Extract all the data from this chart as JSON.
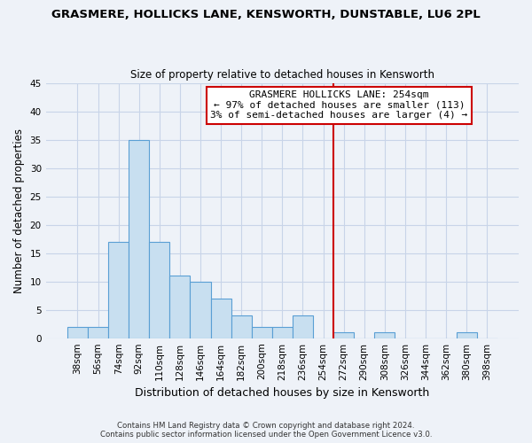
{
  "title": "GRASMERE, HOLLICKS LANE, KENSWORTH, DUNSTABLE, LU6 2PL",
  "subtitle": "Size of property relative to detached houses in Kensworth",
  "xlabel": "Distribution of detached houses by size in Kensworth",
  "ylabel": "Number of detached properties",
  "bar_labels": [
    "38sqm",
    "56sqm",
    "74sqm",
    "92sqm",
    "110sqm",
    "128sqm",
    "146sqm",
    "164sqm",
    "182sqm",
    "200sqm",
    "218sqm",
    "236sqm",
    "254sqm",
    "272sqm",
    "290sqm",
    "308sqm",
    "326sqm",
    "344sqm",
    "362sqm",
    "380sqm",
    "398sqm"
  ],
  "bar_heights": [
    2,
    2,
    17,
    35,
    17,
    11,
    10,
    7,
    4,
    2,
    2,
    4,
    0,
    1,
    0,
    1,
    0,
    0,
    0,
    1,
    0
  ],
  "bar_color": "#c8dff0",
  "bar_edge_color": "#5a9fd4",
  "reference_line_color": "#cc0000",
  "annotation_title": "GRASMERE HOLLICKS LANE: 254sqm",
  "annotation_line1": "← 97% of detached houses are smaller (113)",
  "annotation_line2": "3% of semi-detached houses are larger (4) →",
  "annotation_box_color": "#ffffff",
  "annotation_box_edge": "#cc0000",
  "ylim": [
    0,
    45
  ],
  "yticks": [
    0,
    5,
    10,
    15,
    20,
    25,
    30,
    35,
    40,
    45
  ],
  "footer1": "Contains HM Land Registry data © Crown copyright and database right 2024.",
  "footer2": "Contains public sector information licensed under the Open Government Licence v3.0.",
  "background_color": "#eef2f8",
  "grid_color": "#c8d4e8"
}
